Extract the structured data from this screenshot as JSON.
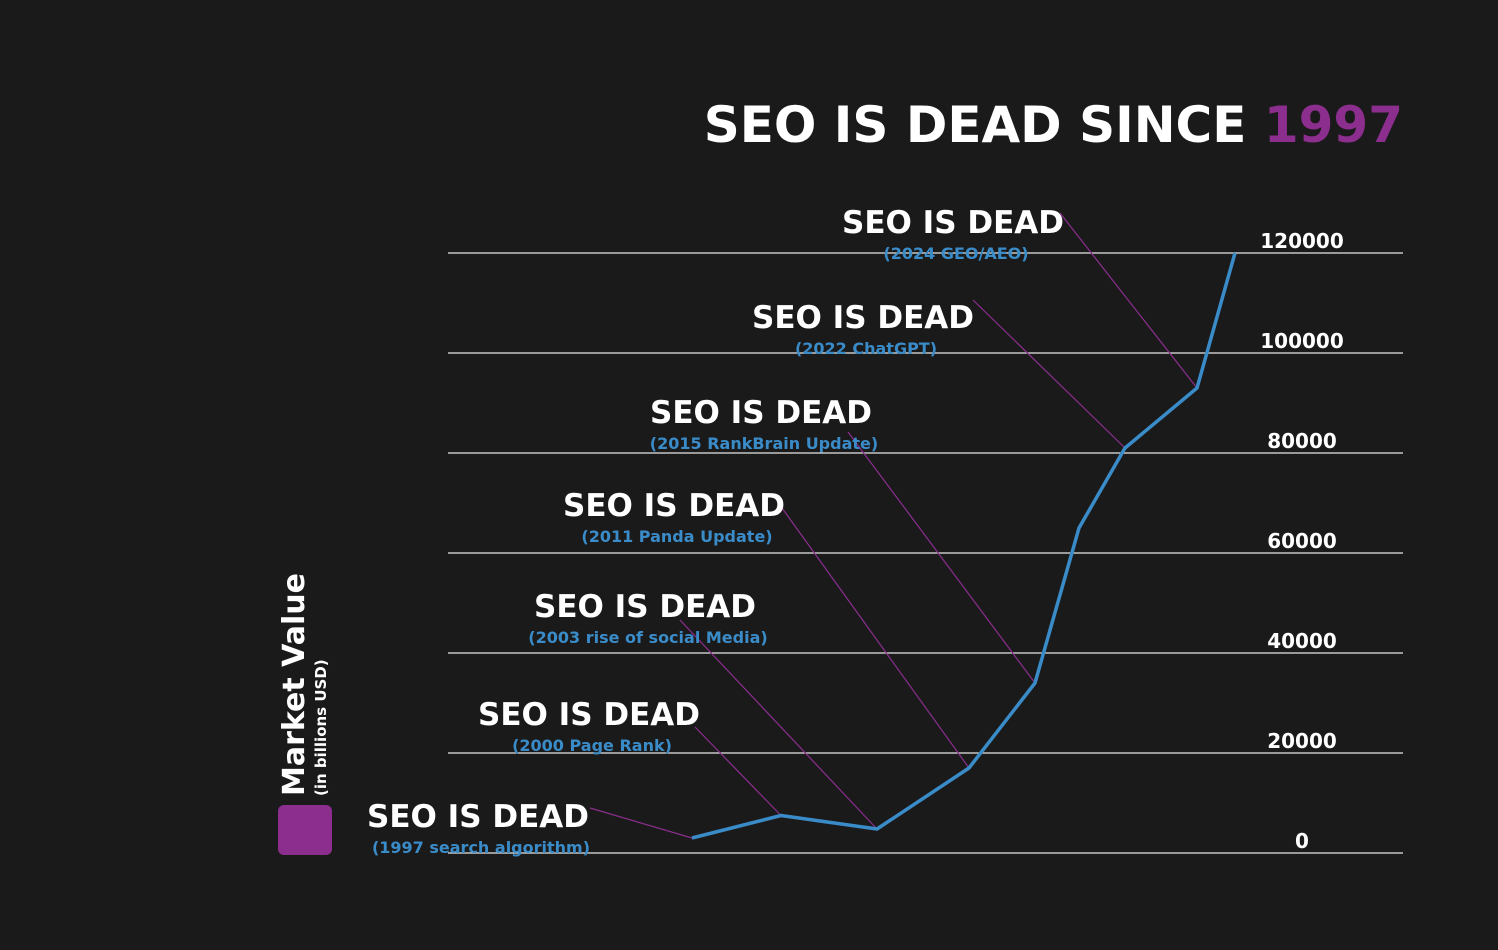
{
  "title": {
    "text": "SEO IS DEAD SINCE",
    "year": "1997"
  },
  "legend": {
    "label": "Market Value",
    "sublabel": "(in billions USD)",
    "color": "#8b2e8e"
  },
  "colors": {
    "background": "#1b1a1b",
    "line": "#3a8cc9",
    "connector": "#8b2e8e",
    "grid": "#e6e6e6",
    "annotation_title": "#ffffff",
    "annotation_sub": "#3a8cc9"
  },
  "chart_data": {
    "type": "line",
    "title": "SEO IS DEAD SINCE 1997",
    "ylabel": "Market Value (in billions USD)",
    "xlabel": "",
    "ylim": [
      0,
      120000
    ],
    "yticks": [
      "0",
      "20000",
      "40000",
      "60000",
      "80000",
      "100000",
      "120000"
    ],
    "ytick_values": [
      0,
      20000,
      40000,
      60000,
      80000,
      100000,
      120000
    ],
    "grid": true,
    "series": [
      {
        "values": [
          3000,
          7500,
          4800,
          17000,
          34000,
          65000,
          81000,
          93000,
          120000
        ]
      }
    ],
    "annotations": [
      {
        "label": "SEO IS DEAD",
        "sublabel": "(1997 search algorithm)",
        "point_index": 0
      },
      {
        "label": "SEO IS DEAD",
        "sublabel": "(2000 Page Rank)",
        "point_index": 1
      },
      {
        "label": "SEO IS DEAD",
        "sublabel": "(2003 rise of social Media)",
        "point_index": 2
      },
      {
        "label": "SEO IS DEAD",
        "sublabel": "(2011 Panda Update)",
        "point_index": 3
      },
      {
        "label": "SEO IS DEAD",
        "sublabel": "(2015 RankBrain Update)",
        "point_index": 4
      },
      {
        "label": "SEO IS DEAD",
        "sublabel": "(2022 ChatGPT)",
        "point_index": 6
      },
      {
        "label": "SEO IS DEAD",
        "sublabel": "(2024 GEO/AEO)",
        "point_index": 7
      }
    ]
  }
}
